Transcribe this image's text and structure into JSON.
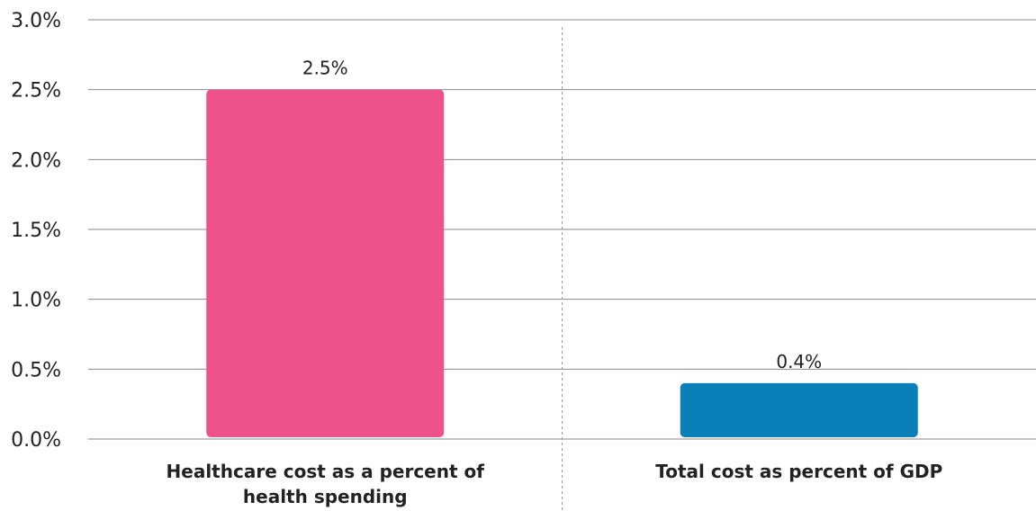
{
  "chart_data": {
    "type": "bar",
    "categories": [
      [
        "Healthcare cost as a percent of",
        "health spending"
      ],
      [
        "Total cost as percent of GDP"
      ]
    ],
    "values": [
      2.5,
      0.4
    ],
    "value_labels": [
      "2.5%",
      "0.4%"
    ],
    "bar_colors": [
      "#EE528A",
      "#0A7FB8"
    ],
    "ylim": [
      0,
      3
    ],
    "yticks": [
      {
        "value": 0,
        "label": "0.0%"
      },
      {
        "value": 0.5,
        "label": "0.5%"
      },
      {
        "value": 1,
        "label": "1.0%"
      },
      {
        "value": 1.5,
        "label": "1.5%"
      },
      {
        "value": 2,
        "label": "2.0%"
      },
      {
        "value": 2.5,
        "label": "2.5%"
      },
      {
        "value": 3,
        "label": "3.0%"
      }
    ],
    "title": "",
    "xlabel": "",
    "ylabel": "",
    "grid": true,
    "legend": "none"
  }
}
